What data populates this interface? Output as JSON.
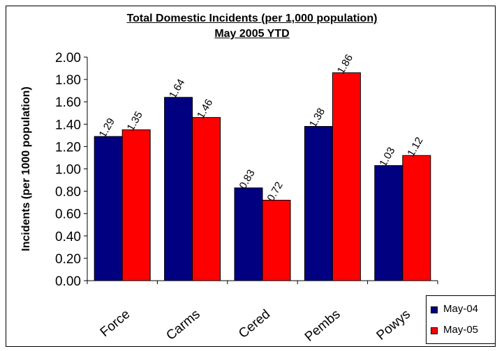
{
  "chart_data": {
    "type": "bar",
    "title": "Total Domestic Incidents (per 1,000 population)",
    "subtitle": "May 2005 YTD",
    "ylabel": "Incidents (per 1000 population)",
    "xlabel": "",
    "categories": [
      "Force",
      "Carms",
      "Cered",
      "Pembs",
      "Powys"
    ],
    "series": [
      {
        "name": "May-04",
        "color": "#000080",
        "values": [
          1.29,
          1.64,
          0.83,
          1.38,
          1.03
        ],
        "labels": [
          "1.29",
          "1.64",
          "0.83",
          "1.38",
          "1.03"
        ]
      },
      {
        "name": "May-05",
        "color": "#ff0000",
        "values": [
          1.35,
          1.46,
          0.72,
          1.86,
          1.12
        ],
        "labels": [
          "1.35",
          "1.46",
          "0.72",
          "1.86",
          "1.12"
        ]
      }
    ],
    "ylim": [
      0,
      2.0
    ],
    "yticks": [
      "0.00",
      "0.20",
      "0.40",
      "0.60",
      "0.80",
      "1.00",
      "1.20",
      "1.40",
      "1.60",
      "1.80",
      "2.00"
    ],
    "grid": false,
    "legend_position": "bottom-right"
  }
}
